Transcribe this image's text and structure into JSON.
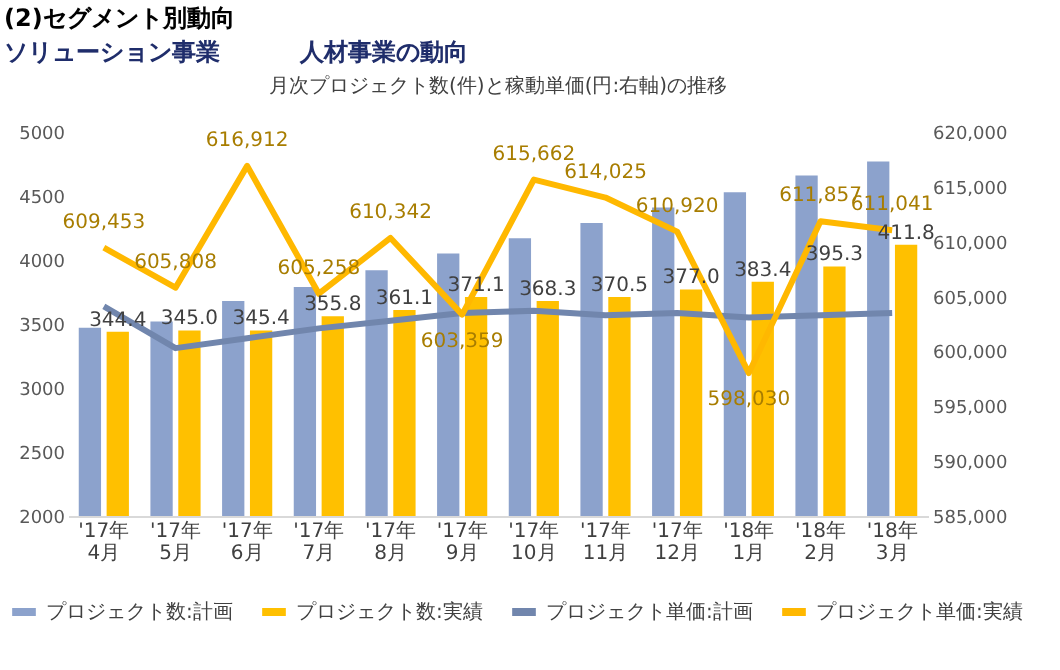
{
  "chart_data": {
    "type": "bar",
    "title": "月次プロジェクト数(件)と稼動単価(円:右軸)の推移",
    "annotations": [
      "(2)セグメント別動向",
      "ソリューション事業",
      "人材事業の動向",
      "344.4",
      "345.0",
      "345.4",
      "355.8",
      "361.1",
      "371.1",
      "368.3",
      "370.5",
      "377.0",
      "383.4",
      "395.3",
      "411.8"
    ],
    "categories": [
      "'17年4月",
      "'17年5月",
      "'17年6月",
      "'17年7月",
      "'17年8月",
      "'17年9月",
      "'17年10月",
      "'17年11月",
      "'17年12月",
      "'18年1月",
      "'18年2月",
      "'18年3月"
    ],
    "series": [
      {
        "name": "プロジェクト数:計画",
        "color": "#8ca2cc",
        "values": [
          3470,
          3520,
          3680,
          3790,
          3920,
          4050,
          4170,
          4290,
          4410,
          4530,
          4660,
          4770
        ]
      },
      {
        "name": "プロジェクト数:実績",
        "color": "#ffc000",
        "values": [
          3440,
          3450,
          3450,
          3560,
          3610,
          3710,
          3680,
          3710,
          3770,
          3830,
          3950,
          4120
        ]
      },
      {
        "name": "プロジェクト単価:計画",
        "type": "line",
        "axis": "y2",
        "color": "#7186ad",
        "values": [
          604100,
          600300,
          601200,
          602100,
          602800,
          603500,
          603700,
          603300,
          603500,
          603100,
          603300,
          603500
        ]
      },
      {
        "name": "プロジェクト単価:実績",
        "type": "line",
        "axis": "y2",
        "color": "#ffb800",
        "values": [
          609453,
          605808,
          616912,
          605258,
          610342,
          603359,
          615662,
          614025,
          610920,
          598030,
          611857,
          611041
        ],
        "value_labels": [
          "609,453",
          "605,808",
          "616,912",
          "605,258",
          "610,342",
          "603,359",
          "615,662",
          "614,025",
          "610,920",
          "598,030",
          "611,857",
          "611,041"
        ]
      }
    ],
    "ylim": [
      2000,
      5000
    ],
    "yticks": [
      2000,
      2500,
      3000,
      3500,
      4000,
      4500,
      5000
    ],
    "y2lim": [
      585000,
      620000
    ],
    "y2ticks": [
      {
        "value": 585000,
        "label": "585,000"
      },
      {
        "value": 590000,
        "label": "590,000"
      },
      {
        "value": 595000,
        "label": "595,000"
      },
      {
        "value": 600000,
        "label": "600,000"
      },
      {
        "value": 605000,
        "label": "605,000"
      },
      {
        "value": 610000,
        "label": "610,000"
      },
      {
        "value": 615000,
        "label": "615,000"
      },
      {
        "value": 620000,
        "label": "620,000"
      }
    ],
    "legend": "bottom"
  }
}
